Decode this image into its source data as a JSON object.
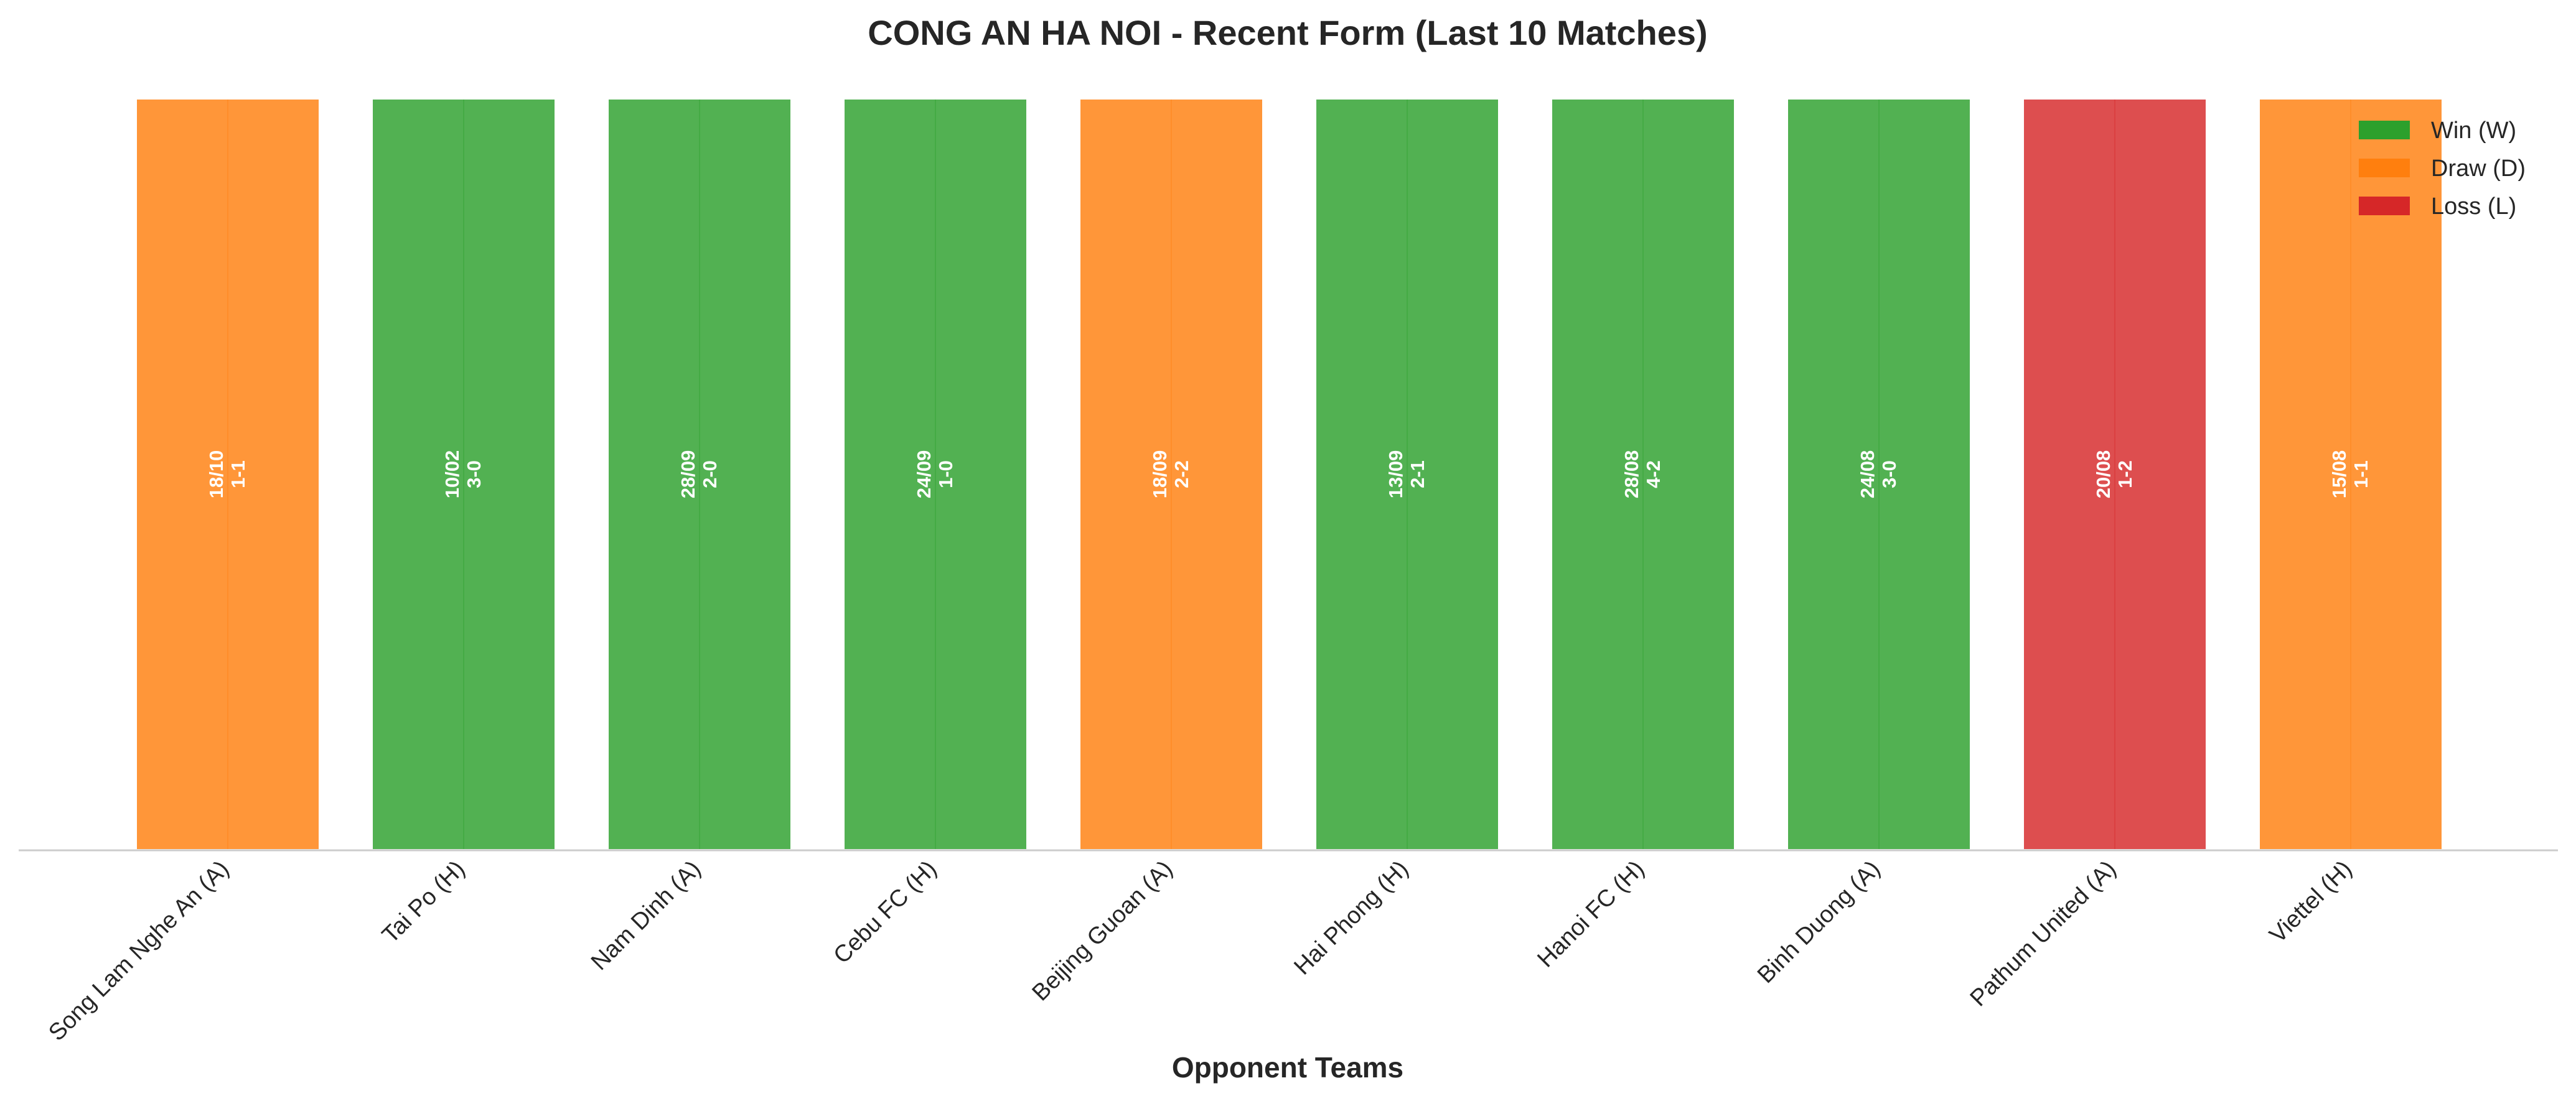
{
  "chart_data": {
    "type": "bar",
    "title": "CONG AN HA NOI - Recent Form (Last 10 Matches)",
    "xlabel": "Opponent Teams",
    "ylabel": "",
    "ylim": [
      0,
      1
    ],
    "grid": false,
    "legend_position": "top-right",
    "legend": [
      {
        "key": "W",
        "label": "Win (W)",
        "color": "#2ca02c"
      },
      {
        "key": "D",
        "label": "Draw (D)",
        "color": "#ff7f0e"
      },
      {
        "key": "L",
        "label": "Loss (L)",
        "color": "#d62728"
      }
    ],
    "categories": [
      "Song Lam Nghe An (A)",
      "Tai Po (H)",
      "Nam Dinh (A)",
      "Cebu FC (H)",
      "Beijing Guoan (A)",
      "Hai Phong (H)",
      "Hanoi FC (H)",
      "Binh Duong (A)",
      "Pathum United (A)",
      "Viettel (H)"
    ],
    "values": [
      1,
      1,
      1,
      1,
      1,
      1,
      1,
      1,
      1,
      1
    ],
    "results": [
      "D",
      "W",
      "W",
      "W",
      "D",
      "W",
      "W",
      "W",
      "L",
      "D"
    ],
    "dates": [
      "18/10",
      "10/02",
      "28/09",
      "24/09",
      "18/09",
      "13/09",
      "28/08",
      "24/08",
      "20/08",
      "15/08"
    ],
    "scores": [
      "1-1",
      "3-0",
      "2-0",
      "1-0",
      "2-2",
      "2-1",
      "4-2",
      "3-0",
      "1-2",
      "1-1"
    ]
  }
}
